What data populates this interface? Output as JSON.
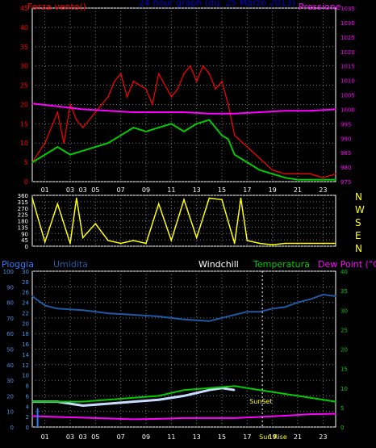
{
  "chart_data": [
    {
      "type": "line",
      "title": "24 hour graph (du: 25 Marzo 2013)",
      "left_label": "Forza vento()",
      "right_label": "Pressione",
      "x_ticks": [
        "01",
        "03",
        "05",
        "07",
        "09",
        "11",
        "13",
        "15",
        "17",
        "19",
        "21",
        "23"
      ],
      "x_ticks_extra": [
        "03"
      ],
      "ylim": [
        0,
        45
      ],
      "y_ticks": [
        0,
        5,
        10,
        15,
        20,
        25,
        30,
        35,
        40,
        45
      ],
      "y2lim": [
        975,
        1035
      ],
      "y2_ticks": [
        975,
        980,
        985,
        990,
        995,
        1000,
        1005,
        1010,
        1015,
        1020,
        1025,
        1030,
        1035
      ],
      "grid": true,
      "series": [
        {
          "name": "Forza vento()",
          "color": "#ff0000",
          "axis": "left",
          "x": [
            0,
            1,
            2,
            2.5,
            3,
            3.5,
            4,
            5,
            6,
            6.5,
            7,
            7.5,
            8,
            9,
            9.5,
            10,
            11,
            11.5,
            12,
            12.5,
            13,
            13.5,
            14,
            14.5,
            15,
            15.5,
            16,
            17,
            18,
            19,
            20,
            21,
            22,
            23,
            24
          ],
          "values": [
            5,
            10,
            18,
            10,
            20,
            16,
            14,
            18,
            22,
            26,
            28,
            22,
            26,
            24,
            20,
            28,
            22,
            24,
            28,
            30,
            26,
            30,
            28,
            24,
            26,
            20,
            12,
            9,
            6,
            3,
            2,
            2,
            2,
            1,
            2
          ]
        },
        {
          "color": "#00cc00",
          "axis": "left",
          "x": [
            0,
            1,
            2,
            3,
            4,
            5,
            6,
            7,
            8,
            9,
            10,
            11,
            12,
            13,
            14,
            15,
            15.5,
            16,
            17,
            18,
            19,
            20,
            21,
            22,
            23,
            24
          ],
          "values": [
            5,
            7,
            9,
            7,
            8,
            9,
            10,
            12,
            14,
            13,
            14,
            15,
            13,
            15,
            16,
            12,
            11,
            7,
            5,
            3,
            2,
            1,
            0.5,
            0.5,
            0.5,
            0.5
          ]
        },
        {
          "name": "Pressione",
          "color": "#ff00ff",
          "axis": "right",
          "x": [
            0,
            2,
            4,
            6,
            8,
            10,
            12,
            14,
            16,
            18,
            20,
            22,
            24
          ],
          "values": [
            1002,
            1001,
            1000,
            999.5,
            999,
            999,
            999,
            998.5,
            998.5,
            999,
            999.5,
            999.5,
            1000
          ]
        }
      ]
    },
    {
      "type": "line",
      "right_labels": [
        "N",
        "W",
        "S",
        "E",
        "N"
      ],
      "ylim": [
        0,
        360
      ],
      "y_ticks": [
        0,
        45,
        90,
        135,
        180,
        225,
        270,
        315,
        360
      ],
      "series": [
        {
          "color": "#ffff00",
          "x": [
            0,
            1,
            2,
            3,
            3.5,
            4,
            5,
            6,
            7,
            8,
            9,
            10,
            11,
            12,
            13,
            14,
            15,
            16,
            16.5,
            17,
            18,
            19,
            20,
            22,
            24
          ],
          "values": [
            340,
            30,
            300,
            20,
            340,
            60,
            160,
            40,
            20,
            40,
            20,
            300,
            40,
            330,
            60,
            340,
            330,
            20,
            340,
            40,
            20,
            10,
            20,
            20,
            20
          ]
        }
      ]
    },
    {
      "type": "line",
      "header_labels": [
        "Pioggia",
        "Umidita",
        "Windchill",
        "Temperatura",
        "Dew Point (°C)"
      ],
      "left_ticks": [
        0,
        10,
        20,
        30,
        40,
        50,
        60,
        70,
        80,
        90,
        100
      ],
      "left2_ticks": [
        0,
        2,
        4,
        6,
        8,
        10,
        12,
        14,
        16,
        18,
        20,
        22,
        24,
        26,
        28,
        30
      ],
      "ylim": [
        0,
        100
      ],
      "y2lim": [
        0,
        40
      ],
      "y2_ticks": [
        0,
        5,
        10,
        15,
        20,
        25,
        30,
        35,
        40
      ],
      "x_ticks": [
        "01",
        "03",
        "05",
        "07",
        "09",
        "11",
        "13",
        "15",
        "17",
        "19",
        "21",
        "23"
      ],
      "x_ticks_extra": [
        "03"
      ],
      "annotations": [
        "SunSet",
        "Sun Rise"
      ],
      "series": [
        {
          "name": "Umidita",
          "color": "#1f5aa6",
          "axis": "left",
          "x": [
            0,
            1,
            2,
            4,
            6,
            8,
            10,
            12,
            14,
            16,
            17,
            18,
            19,
            20,
            21,
            22,
            23,
            24
          ],
          "values": [
            84,
            78,
            76,
            75,
            73,
            72,
            71,
            69,
            68,
            72,
            74,
            74,
            76,
            77,
            80,
            82,
            85,
            84
          ]
        },
        {
          "name": "Windchill",
          "color": "#c8dcff",
          "axis": "right",
          "x": [
            0,
            2,
            4,
            6,
            8,
            10,
            12,
            14,
            15,
            16
          ],
          "values": [
            6.5,
            6.5,
            5.5,
            6,
            6.5,
            7,
            8,
            9.5,
            10,
            9.5
          ]
        },
        {
          "name": "Temperatura",
          "color": "#00cc00",
          "axis": "right",
          "x": [
            0,
            2,
            4,
            6,
            8,
            10,
            12,
            14,
            16,
            18,
            20,
            22,
            24
          ],
          "values": [
            6.5,
            6.5,
            6.5,
            7,
            7.5,
            8,
            9.5,
            10,
            10.5,
            9.5,
            8.5,
            7.5,
            6.5
          ]
        },
        {
          "name": "Dew Point (°C)",
          "color": "#ff00ff",
          "axis": "right",
          "x": [
            0,
            2,
            4,
            6,
            8,
            10,
            12,
            14,
            16,
            18,
            20,
            22,
            24
          ],
          "values": [
            2.8,
            2.6,
            2.4,
            2.2,
            2.0,
            2.1,
            2.3,
            2.3,
            2.3,
            2.6,
            2.9,
            3.3,
            3.4
          ]
        },
        {
          "name": "Pioggia",
          "color": "#2a7fff",
          "axis": "left",
          "x": [
            0.1
          ],
          "values": [
            12
          ]
        }
      ]
    }
  ]
}
